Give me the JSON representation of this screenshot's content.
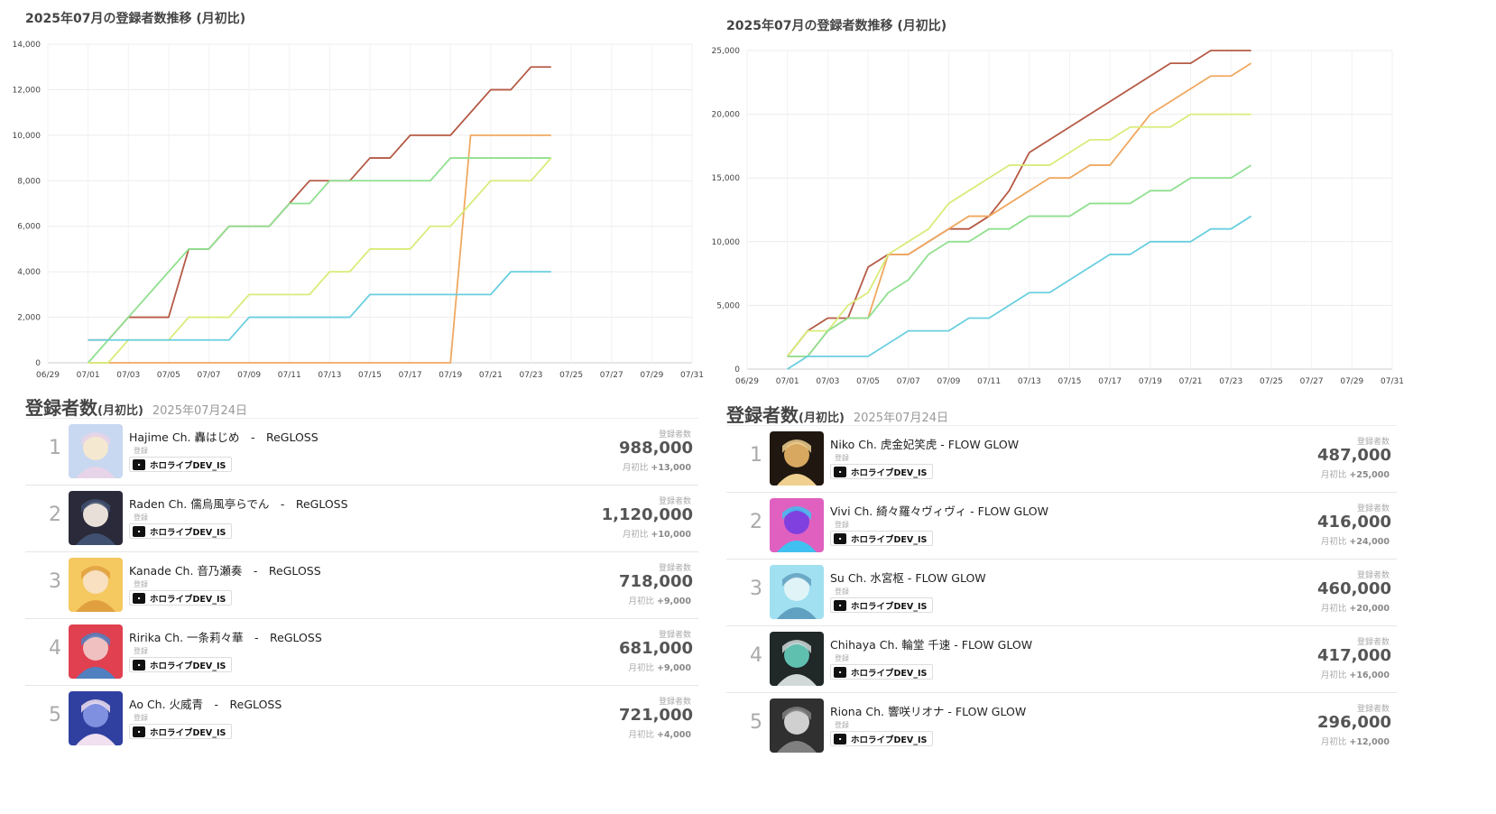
{
  "panels": [
    {
      "chart_title": "2025年07月の登録者数推移 (月初比)",
      "chart_data": {
        "type": "line",
        "title": "2025年07月の登録者数推移 (月初比)",
        "x_labels": [
          "06/29",
          "07/01",
          "07/03",
          "07/05",
          "07/07",
          "07/09",
          "07/11",
          "07/13",
          "07/15",
          "07/17",
          "07/19",
          "07/21",
          "07/23",
          "07/25",
          "07/27",
          "07/29",
          "07/31"
        ],
        "y_ticks": [
          "0",
          "2,000",
          "4,000",
          "6,000",
          "8,000",
          "10,000",
          "12,000",
          "14,000"
        ],
        "ylim": [
          0,
          14000
        ],
        "grid": true,
        "series": [
          {
            "color": "#b55a45",
            "start_day": 1,
            "values": [
              1000,
              1000,
              2000,
              2000,
              2000,
              5000,
              5000,
              6000,
              6000,
              6000,
              7000,
              8000,
              8000,
              8000,
              9000,
              9000,
              10000,
              10000,
              10000,
              11000,
              12000,
              12000,
              13000,
              13000
            ]
          },
          {
            "color": "#f0a860",
            "start_day": 1,
            "values": [
              0,
              0,
              0,
              0,
              0,
              0,
              0,
              0,
              0,
              0,
              0,
              0,
              0,
              0,
              0,
              0,
              0,
              0,
              0,
              10000,
              10000,
              10000,
              10000,
              10000
            ]
          },
          {
            "color": "#90e090",
            "start_day": 1,
            "values": [
              0,
              1000,
              2000,
              3000,
              4000,
              5000,
              5000,
              6000,
              6000,
              6000,
              7000,
              7000,
              8000,
              8000,
              8000,
              8000,
              8000,
              8000,
              9000,
              9000,
              9000,
              9000,
              9000,
              9000
            ]
          },
          {
            "color": "#d8ec7a",
            "start_day": 1,
            "values": [
              0,
              0,
              1000,
              1000,
              1000,
              2000,
              2000,
              2000,
              3000,
              3000,
              3000,
              3000,
              4000,
              4000,
              5000,
              5000,
              5000,
              6000,
              6000,
              7000,
              8000,
              8000,
              8000,
              9000
            ]
          },
          {
            "color": "#6acfe0",
            "start_day": 1,
            "values": [
              1000,
              1000,
              1000,
              1000,
              1000,
              1000,
              1000,
              1000,
              2000,
              2000,
              2000,
              2000,
              2000,
              2000,
              3000,
              3000,
              3000,
              3000,
              3000,
              3000,
              3000,
              4000,
              4000,
              4000
            ]
          }
        ]
      },
      "ranking": {
        "title": "登録者数",
        "title_suffix": "(月初比)",
        "date": "2025年07月24日",
        "stat_label": "登録者数",
        "sub_label": "登録",
        "diff_prefix": "月初比",
        "rows": [
          {
            "rank": "1",
            "name": "Hajime Ch. 轟はじめ　-　ReGLOSS",
            "tag": "ホロライブDEV_IS",
            "subscribers": "988,000",
            "diff": "+13,000",
            "avatar_colors": [
              "#c8d8f0",
              "#f5e8d0",
              "#e8d4e8"
            ]
          },
          {
            "rank": "2",
            "name": "Raden Ch. 儒烏風亭らでん　-　ReGLOSS",
            "tag": "ホロライブDEV_IS",
            "subscribers": "1,120,000",
            "diff": "+10,000",
            "avatar_colors": [
              "#2a2a3a",
              "#e8e0d8",
              "#405070"
            ]
          },
          {
            "rank": "3",
            "name": "Kanade Ch. 音乃瀬奏　-　ReGLOSS",
            "tag": "ホロライブDEV_IS",
            "subscribers": "718,000",
            "diff": "+9,000",
            "avatar_colors": [
              "#f5c860",
              "#f8e0c0",
              "#e0a040"
            ]
          },
          {
            "rank": "4",
            "name": "Ririka Ch. 一条莉々華　-　ReGLOSS",
            "tag": "ホロライブDEV_IS",
            "subscribers": "681,000",
            "diff": "+9,000",
            "avatar_colors": [
              "#e04050",
              "#f0c0c0",
              "#5080c0"
            ]
          },
          {
            "rank": "5",
            "name": "Ao Ch. 火威青　-　ReGLOSS",
            "tag": "ホロライブDEV_IS",
            "subscribers": "721,000",
            "diff": "+4,000",
            "avatar_colors": [
              "#3040a0",
              "#8090e0",
              "#f0e0f0"
            ]
          }
        ]
      }
    },
    {
      "chart_title": "2025年07月の登録者数推移 (月初比)",
      "chart_data": {
        "type": "line",
        "title": "2025年07月の登録者数推移 (月初比)",
        "x_labels": [
          "06/29",
          "07/01",
          "07/03",
          "07/05",
          "07/07",
          "07/09",
          "07/11",
          "07/13",
          "07/15",
          "07/17",
          "07/19",
          "07/21",
          "07/23",
          "07/25",
          "07/27",
          "07/29",
          "07/31"
        ],
        "y_ticks": [
          "0",
          "5,000",
          "10,000",
          "15,000",
          "20,000",
          "25,000"
        ],
        "ylim": [
          0,
          25000
        ],
        "grid": true,
        "series": [
          {
            "color": "#b55a45",
            "start_day": 1,
            "values": [
              1000,
              3000,
              4000,
              4000,
              8000,
              9000,
              9000,
              10000,
              11000,
              11000,
              12000,
              14000,
              17000,
              18000,
              19000,
              20000,
              21000,
              22000,
              23000,
              24000,
              24000,
              25000,
              25000,
              25000
            ]
          },
          {
            "color": "#f0a860",
            "start_day": 1,
            "values": [
              1000,
              1000,
              3000,
              4000,
              4000,
              9000,
              9000,
              10000,
              11000,
              12000,
              12000,
              13000,
              14000,
              15000,
              15000,
              16000,
              16000,
              18000,
              20000,
              21000,
              22000,
              23000,
              23000,
              24000
            ]
          },
          {
            "color": "#d8ec7a",
            "start_day": 1,
            "values": [
              1000,
              3000,
              3000,
              5000,
              6000,
              9000,
              10000,
              11000,
              13000,
              14000,
              15000,
              16000,
              16000,
              16000,
              17000,
              18000,
              18000,
              19000,
              19000,
              19000,
              20000,
              20000,
              20000,
              20000
            ]
          },
          {
            "color": "#90e090",
            "start_day": 1,
            "values": [
              1000,
              1000,
              3000,
              4000,
              4000,
              6000,
              7000,
              9000,
              10000,
              10000,
              11000,
              11000,
              12000,
              12000,
              12000,
              13000,
              13000,
              13000,
              14000,
              14000,
              15000,
              15000,
              15000,
              16000
            ]
          },
          {
            "color": "#6acfe0",
            "start_day": 1,
            "values": [
              0,
              1000,
              1000,
              1000,
              1000,
              2000,
              3000,
              3000,
              3000,
              4000,
              4000,
              5000,
              6000,
              6000,
              7000,
              8000,
              9000,
              9000,
              10000,
              10000,
              10000,
              11000,
              11000,
              12000
            ]
          }
        ]
      },
      "ranking": {
        "title": "登録者数",
        "title_suffix": "(月初比)",
        "date": "2025年07月24日",
        "stat_label": "登録者数",
        "sub_label": "登録",
        "diff_prefix": "月初比",
        "rows": [
          {
            "rank": "1",
            "name": "Niko Ch. 虎金妃笑虎 - FLOW GLOW",
            "tag": "ホロライブDEV_IS",
            "subscribers": "487,000",
            "diff": "+25,000",
            "avatar_colors": [
              "#201810",
              "#d8a860",
              "#f0d090"
            ]
          },
          {
            "rank": "2",
            "name": "Vivi Ch. 綺々羅々ヴィヴィ - FLOW GLOW",
            "tag": "ホロライブDEV_IS",
            "subscribers": "416,000",
            "diff": "+24,000",
            "avatar_colors": [
              "#e060c0",
              "#8040e0",
              "#40c0f0"
            ]
          },
          {
            "rank": "3",
            "name": "Su Ch. 水宮枢 - FLOW GLOW",
            "tag": "ホロライブDEV_IS",
            "subscribers": "460,000",
            "diff": "+20,000",
            "avatar_colors": [
              "#a0e0f0",
              "#e0f4f8",
              "#60a0c0"
            ]
          },
          {
            "rank": "4",
            "name": "Chihaya Ch. 輪堂 千速 - FLOW GLOW",
            "tag": "ホロライブDEV_IS",
            "subscribers": "417,000",
            "diff": "+16,000",
            "avatar_colors": [
              "#202828",
              "#60c0b0",
              "#d0d8d8"
            ]
          },
          {
            "rank": "5",
            "name": "Riona Ch. 響咲リオナ - FLOW GLOW",
            "tag": "ホロライブDEV_IS",
            "subscribers": "296,000",
            "diff": "+12,000",
            "avatar_colors": [
              "#303030",
              "#d0d0d0",
              "#808080"
            ]
          }
        ]
      }
    }
  ]
}
